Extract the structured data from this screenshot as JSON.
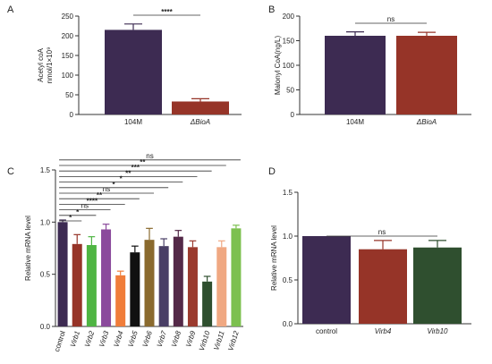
{
  "chart_data": [
    {
      "panel": "A",
      "type": "bar",
      "categories": [
        "104M",
        "ΔBioA"
      ],
      "category_italic": [
        false,
        true
      ],
      "values": [
        215,
        33
      ],
      "errors": [
        15,
        7
      ],
      "colors": [
        "#3d2b52",
        "#963428"
      ],
      "ylabel": "Acetyl coA nmol/1×10⁹",
      "ylim": [
        0,
        250
      ],
      "yticks": [
        0,
        50,
        100,
        150,
        200,
        250
      ],
      "significance": [
        {
          "from": 0,
          "to": 1,
          "label": "****"
        }
      ]
    },
    {
      "panel": "B",
      "type": "bar",
      "categories": [
        "104M",
        "ΔBioA"
      ],
      "category_italic": [
        false,
        true
      ],
      "values": [
        160,
        160
      ],
      "errors": [
        8,
        7
      ],
      "colors": [
        "#3d2b52",
        "#963428"
      ],
      "ylabel": "Malonyl CoA(ng/L)",
      "ylim": [
        0,
        200
      ],
      "yticks": [
        0,
        50,
        100,
        150,
        200
      ],
      "significance": [
        {
          "from": 0,
          "to": 1,
          "label": "ns"
        }
      ]
    },
    {
      "panel": "C",
      "type": "bar",
      "categories": [
        "control",
        "Virb1",
        "Virb2",
        "Virb3",
        "Virb4",
        "Virb5",
        "Virb6",
        "Virb7",
        "Virb8",
        "Virb9",
        "Virb10",
        "Virb11",
        "Virb12"
      ],
      "category_italic": [
        false,
        true,
        true,
        true,
        true,
        true,
        true,
        true,
        true,
        true,
        true,
        true,
        true
      ],
      "values": [
        1.0,
        0.79,
        0.78,
        0.93,
        0.49,
        0.71,
        0.83,
        0.77,
        0.86,
        0.76,
        0.43,
        0.76,
        0.94
      ],
      "errors": [
        0.02,
        0.09,
        0.08,
        0.05,
        0.04,
        0.06,
        0.11,
        0.07,
        0.06,
        0.06,
        0.05,
        0.06,
        0.03
      ],
      "colors": [
        "#3d2b52",
        "#963428",
        "#4fb543",
        "#8b4a9c",
        "#f07d3a",
        "#111111",
        "#8a6a2e",
        "#4a3f66",
        "#542948",
        "#9b3a2e",
        "#2f4f2f",
        "#f0a882",
        "#7cc04f"
      ],
      "ylabel": "Relative mRNA level",
      "ylim": [
        0,
        1.5
      ],
      "yticks": [
        0.0,
        0.5,
        1.0,
        1.5
      ],
      "significance": [
        {
          "from": 0,
          "to": 1,
          "label": "*"
        },
        {
          "from": 0,
          "to": 2,
          "label": "*"
        },
        {
          "from": 0,
          "to": 3,
          "label": "ns"
        },
        {
          "from": 0,
          "to": 4,
          "label": "****"
        },
        {
          "from": 0,
          "to": 5,
          "label": "**"
        },
        {
          "from": 0,
          "to": 6,
          "label": "ns"
        },
        {
          "from": 0,
          "to": 7,
          "label": "*"
        },
        {
          "from": 0,
          "to": 8,
          "label": "*"
        },
        {
          "from": 0,
          "to": 9,
          "label": "**"
        },
        {
          "from": 0,
          "to": 10,
          "label": "***"
        },
        {
          "from": 0,
          "to": 11,
          "label": "**"
        },
        {
          "from": 0,
          "to": 12,
          "label": "ns"
        }
      ]
    },
    {
      "panel": "D",
      "type": "bar",
      "categories": [
        "control",
        "Virb4",
        "Virb10"
      ],
      "category_italic": [
        false,
        true,
        true
      ],
      "values": [
        1.0,
        0.85,
        0.87
      ],
      "errors": [
        0.0,
        0.1,
        0.08
      ],
      "colors": [
        "#3d2b52",
        "#963428",
        "#2f4f2f"
      ],
      "ylabel": "Relative mRNA level",
      "ylim": [
        0,
        1.5
      ],
      "yticks": [
        0.0,
        0.5,
        1.0,
        1.5
      ],
      "significance": [
        {
          "from": 0,
          "to": 2,
          "label": "ns"
        }
      ]
    }
  ]
}
